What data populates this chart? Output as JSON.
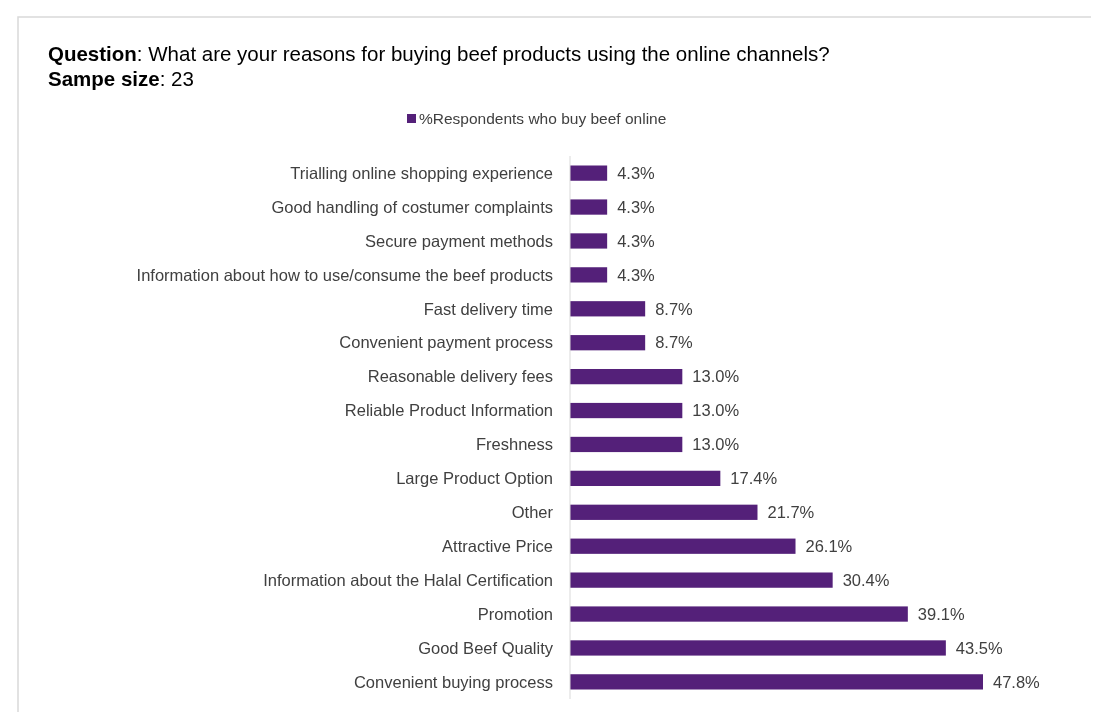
{
  "chart_data": {
    "type": "bar",
    "orientation": "horizontal",
    "title": "Question: What are your reasons for buying beef products using the online channels?",
    "subtitle": "Sampe size: 23",
    "legend": "top",
    "categories": [
      "Trialling online shopping experience",
      "Good handling of costumer complaints",
      "Secure payment methods",
      "Information about how to use/consume the beef products",
      "Fast delivery time",
      "Convenient payment process",
      "Reasonable delivery fees",
      "Reliable Product Information",
      "Freshness",
      "Large Product Option",
      "Other",
      "Attractive Price",
      "Information about the Halal Certification",
      "Promotion",
      "Good Beef Quality",
      "Convenient buying process"
    ],
    "series": [
      {
        "name": "%Respondents who buy beef online",
        "color": "#542079",
        "values": [
          4.3,
          4.3,
          4.3,
          4.3,
          8.7,
          8.7,
          13.0,
          13.0,
          13.0,
          17.4,
          21.7,
          26.1,
          30.4,
          39.1,
          43.5,
          47.8
        ],
        "value_labels": [
          "4.3%",
          "4.3%",
          "4.3%",
          "4.3%",
          "8.7%",
          "8.7%",
          "13.0%",
          "13.0%",
          "13.0%",
          "17.4%",
          "21.7%",
          "26.1%",
          "30.4%",
          "39.1%",
          "43.5%",
          "47.8%"
        ]
      }
    ]
  }
}
